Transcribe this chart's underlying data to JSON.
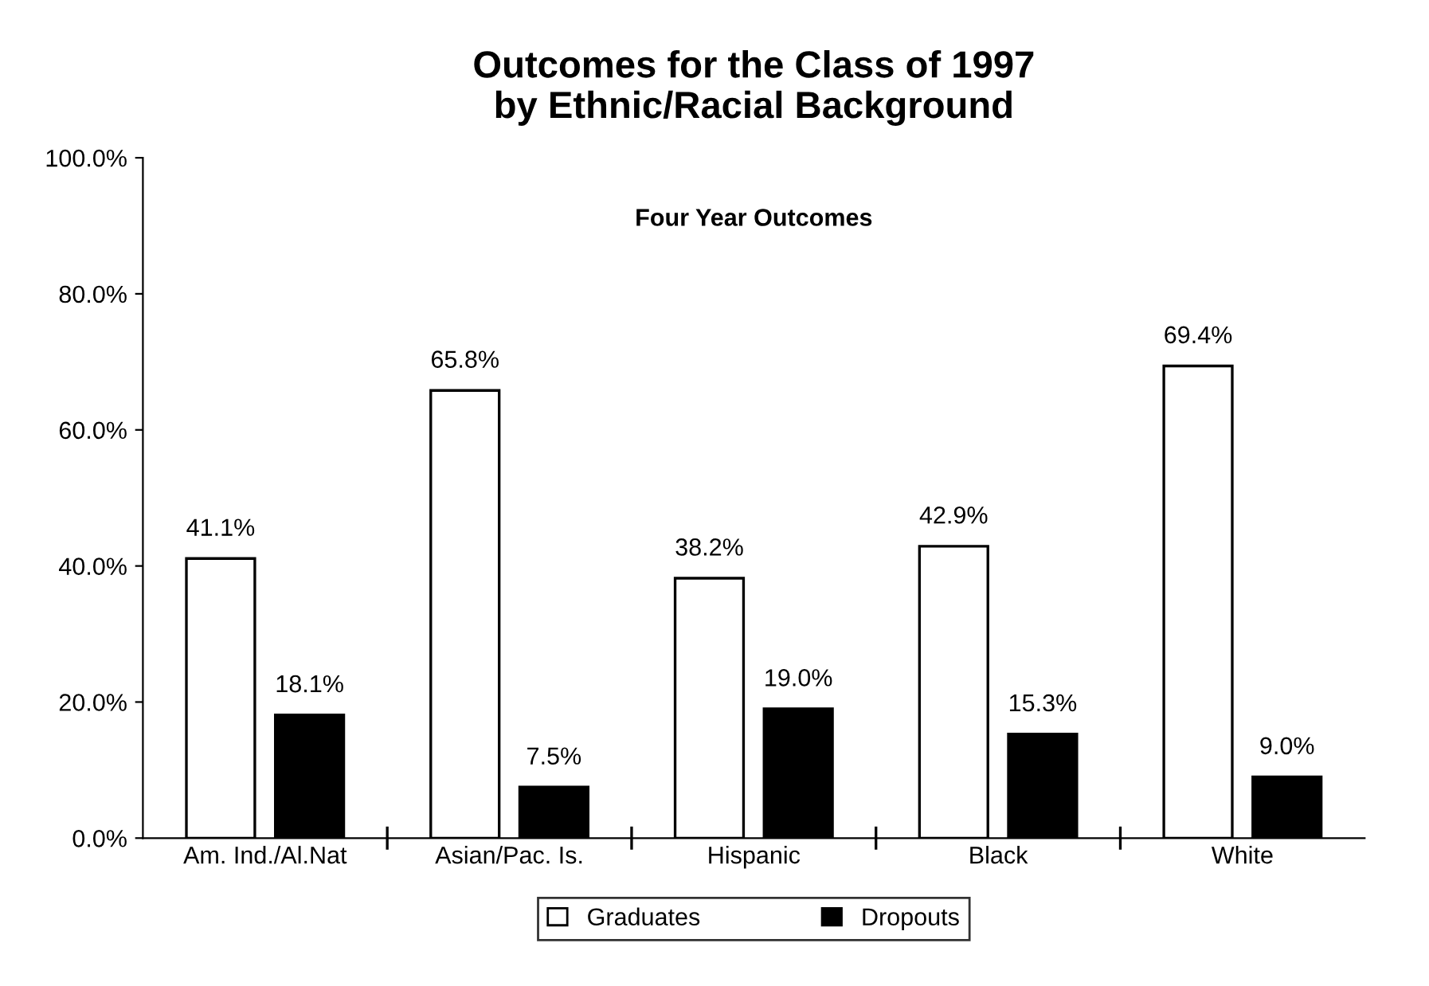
{
  "chart_data": {
    "type": "bar",
    "title": "Outcomes for the Class of 1997\nby Ethnic/Racial Background",
    "subtitle": "Four Year Outcomes",
    "categories": [
      "Am. Ind./Al.Nat",
      "Asian/Pac. Is.",
      "Hispanic",
      "Black",
      "White"
    ],
    "series": [
      {
        "name": "Graduates",
        "color": "#ffffff",
        "values": [
          41.1,
          65.8,
          38.2,
          42.9,
          69.4
        ]
      },
      {
        "name": "Dropouts",
        "color": "#000000",
        "values": [
          18.1,
          7.5,
          19.0,
          15.3,
          9.0
        ]
      }
    ],
    "ylim": [
      0,
      100
    ],
    "yticks": [
      {
        "value": 0,
        "label": "0.0%"
      },
      {
        "value": 20,
        "label": "20.0%"
      },
      {
        "value": 40,
        "label": "40.0%"
      },
      {
        "value": 60,
        "label": "60.0%"
      },
      {
        "value": 80,
        "label": "80.0%"
      },
      {
        "value": 100,
        "label": "100.0%"
      }
    ],
    "value_labels": [
      [
        "41.1%",
        "65.8%",
        "38.2%",
        "42.9%",
        "69.4%"
      ],
      [
        "18.1%",
        "7.5%",
        "19.0%",
        "15.3%",
        "9.0%"
      ]
    ],
    "legend": "bottom",
    "grid": false
  }
}
